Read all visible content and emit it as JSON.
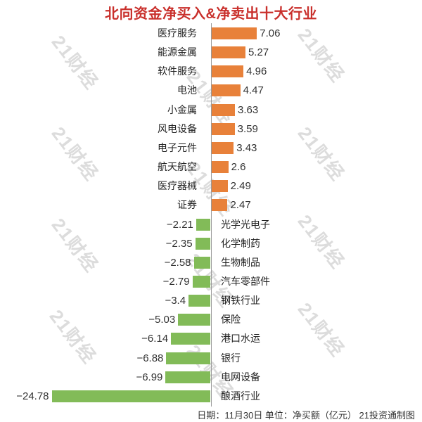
{
  "title": "北向资金净买入&净卖出十大行业",
  "footer": "日期：11月30日 单位：净买额（亿元） 21投资通制图",
  "watermark_text": "21财经",
  "colors": {
    "title": "#c9302c",
    "positive_bar": "#e8813a",
    "negative_bar": "#82bb58",
    "axis_line": "#999999",
    "watermark": "#dcdcdc",
    "value_text": "#333333",
    "category_text": "#222222"
  },
  "chart_data": {
    "type": "bar",
    "orientation": "horizontal",
    "title": "北向资金净买入&净卖出十大行业",
    "xlabel": "",
    "ylabel": "",
    "unit": "亿元",
    "xlim": [
      -25,
      8
    ],
    "grid": false,
    "legend": "none",
    "zero_axis_line": true,
    "categories": [
      "医疗服务",
      "能源金属",
      "软件服务",
      "电池",
      "小金属",
      "风电设备",
      "电子元件",
      "航天航空",
      "医疗器械",
      "证券",
      "光学光电子",
      "化学制药",
      "生物制品",
      "汽车零部件",
      "钢铁行业",
      "保险",
      "港口水运",
      "银行",
      "电网设备",
      "酿酒行业"
    ],
    "values": [
      7.06,
      5.27,
      4.96,
      4.47,
      3.63,
      3.59,
      3.43,
      2.6,
      2.49,
      2.47,
      -2.21,
      -2.35,
      -2.58,
      -2.79,
      -3.4,
      -5.03,
      -6.14,
      -6.88,
      -6.99,
      -24.78
    ],
    "value_labels": [
      "7.06",
      "5.27",
      "4.96",
      "4.47",
      "3.63",
      "3.59",
      "3.43",
      "2.6",
      "2.49",
      "2.47",
      "−2.21",
      "−2.35",
      "−2.58",
      "−2.79",
      "−3.4",
      "−5.03",
      "−6.14",
      "−6.88",
      "−6.99",
      "−24.78"
    ]
  }
}
